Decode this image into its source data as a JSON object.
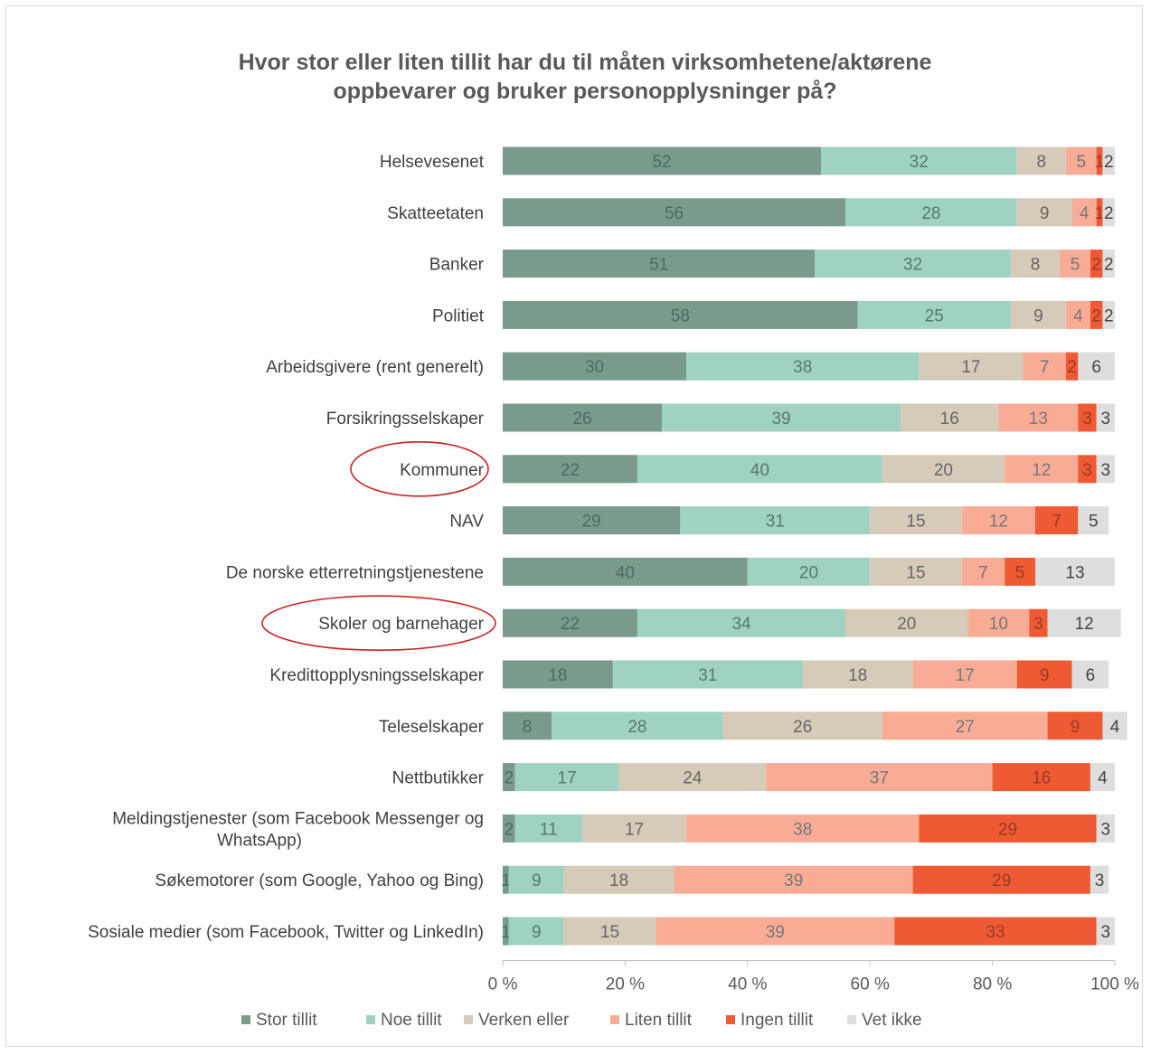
{
  "chart_data": {
    "type": "bar",
    "orientation": "horizontal",
    "stacked": "percent",
    "title": "Hvor stor  eller liten tillit har du til måten virksomhetene/aktørene oppbevarer og bruker personopplysninger på?",
    "title_lines": [
      "Hvor stor  eller liten tillit har du til måten virksomhetene/aktørene",
      "oppbevarer og bruker personopplysninger på?"
    ],
    "categories": [
      "Helsevesenet",
      "Skatteetaten",
      "Banker",
      "Politiet",
      "Arbeidsgivere (rent generelt)",
      "Forsikringsselskaper",
      "Kommuner",
      "NAV",
      "De norske etterretningstjenestene",
      "Skoler og barnehager",
      "Kredittopplysningsselskaper",
      "Teleselskaper",
      "Nettbutikker",
      "Meldingstjenester (som Facebook Messenger og WhatsApp)",
      "Søkemotorer (som Google, Yahoo og Bing)",
      "Sosiale medier (som Facebook, Twitter og LinkedIn)"
    ],
    "series": [
      {
        "name": "Stor tillit",
        "color": "#7a9a8c",
        "values": [
          52,
          56,
          51,
          58,
          30,
          26,
          22,
          29,
          40,
          22,
          18,
          8,
          2,
          2,
          1,
          1
        ]
      },
      {
        "name": "Noe tillit",
        "color": "#9fd2c1",
        "values": [
          32,
          28,
          32,
          25,
          38,
          39,
          40,
          31,
          20,
          34,
          31,
          28,
          17,
          11,
          9,
          9
        ]
      },
      {
        "name": "Verken eller",
        "color": "#d6cbb8",
        "values": [
          8,
          9,
          8,
          9,
          17,
          16,
          20,
          15,
          15,
          20,
          18,
          26,
          24,
          17,
          18,
          15
        ]
      },
      {
        "name": "Liten tillit",
        "color": "#f8ac96",
        "values": [
          5,
          4,
          5,
          4,
          7,
          13,
          12,
          12,
          7,
          10,
          17,
          27,
          37,
          38,
          39,
          39
        ]
      },
      {
        "name": "Ingen tillit",
        "color": "#ee5a33",
        "values": [
          1,
          1,
          2,
          2,
          2,
          3,
          3,
          7,
          5,
          3,
          9,
          9,
          16,
          29,
          29,
          33
        ]
      },
      {
        "name": "Vet ikke",
        "color": "#dedede",
        "values": [
          2,
          2,
          2,
          2,
          6,
          3,
          3,
          5,
          13,
          12,
          6,
          4,
          4,
          3,
          3,
          3
        ]
      }
    ],
    "value_labels": [
      [
        "52",
        "32",
        "8",
        "5",
        "1",
        "2"
      ],
      [
        "56",
        "28",
        "9",
        "4",
        "1",
        "2"
      ],
      [
        "51",
        "32",
        "8",
        "5",
        "2",
        "2"
      ],
      [
        "58",
        "25",
        "9",
        "4",
        "2",
        "2"
      ],
      [
        "30",
        "38",
        "17",
        "7",
        "2",
        "6"
      ],
      [
        "26",
        "39",
        "16",
        "13",
        "3",
        "3"
      ],
      [
        "22",
        "40",
        "20",
        "12",
        "3",
        "3"
      ],
      [
        "29",
        "31",
        "15",
        "12",
        "7",
        "5"
      ],
      [
        "40",
        "20",
        "15",
        "7",
        "5",
        "13"
      ],
      [
        "22",
        "34",
        "20",
        "10",
        "3",
        "12"
      ],
      [
        "18",
        "31",
        "18",
        "17",
        "9",
        "6"
      ],
      [
        "8",
        "28",
        "26",
        "27",
        "9",
        "4"
      ],
      [
        "2",
        "17",
        "24",
        "37",
        "16",
        "4"
      ],
      [
        "2",
        "11",
        "17",
        "38",
        "29",
        "3"
      ],
      [
        "1",
        "9",
        "18",
        "39",
        "29",
        "3"
      ],
      [
        "1",
        "9",
        "15",
        "39",
        "33",
        "3"
      ]
    ],
    "x_ticks": [
      "0 %",
      "20 %",
      "40 %",
      "60 %",
      "80 %",
      "100 %"
    ],
    "xlim": [
      0,
      100
    ],
    "legend_position": "bottom",
    "grid": false,
    "annotations": [
      {
        "type": "ellipse",
        "target": "Kommuner",
        "color": "#cc2222"
      },
      {
        "type": "ellipse",
        "target": "Skoler og barnehager",
        "color": "#cc2222"
      }
    ]
  }
}
